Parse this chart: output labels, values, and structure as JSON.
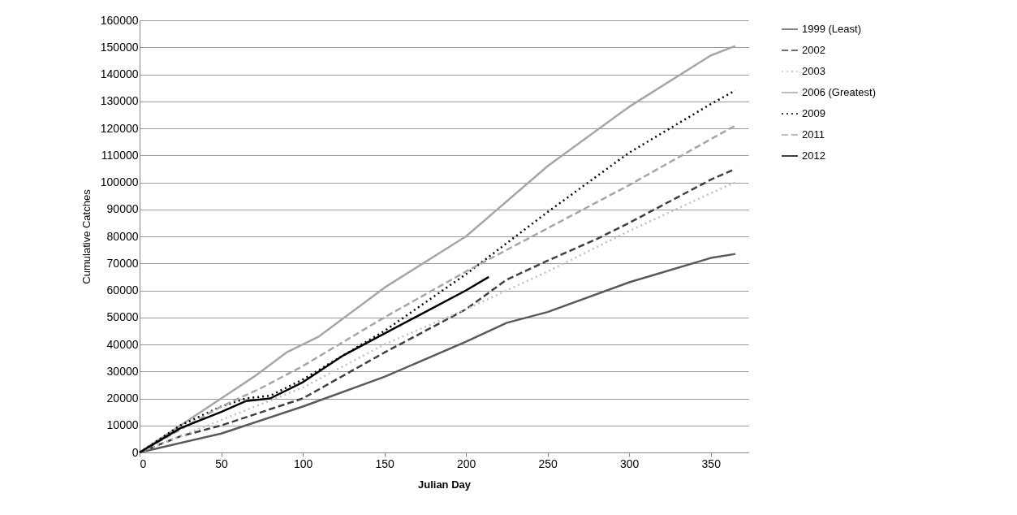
{
  "chart_data": {
    "type": "line",
    "xlabel": "Julian Day",
    "ylabel": "Cumulative Catches",
    "xlim": [
      0,
      373
    ],
    "xticks": [
      0,
      50,
      100,
      150,
      200,
      250,
      300,
      350
    ],
    "ylim": [
      0,
      160000
    ],
    "yticks": [
      0,
      10000,
      20000,
      30000,
      40000,
      50000,
      60000,
      70000,
      80000,
      90000,
      100000,
      110000,
      120000,
      130000,
      140000,
      150000,
      160000
    ],
    "grid": "y",
    "legend": "right",
    "marker": "none",
    "series": [
      {
        "name": "1999 (Least)",
        "color": "#595959",
        "line_style": "solid",
        "x": [
          0,
          50,
          100,
          150,
          200,
          225,
          250,
          300,
          350,
          365
        ],
        "values": [
          0,
          7000,
          17000,
          28000,
          41000,
          48000,
          52000,
          63000,
          72000,
          73500
        ]
      },
      {
        "name": "2002",
        "color": "#404040",
        "line_style": "dashed",
        "x": [
          0,
          25,
          50,
          100,
          150,
          200,
          225,
          250,
          280,
          300,
          350,
          365
        ],
        "values": [
          0,
          6000,
          10000,
          20000,
          37000,
          53000,
          64000,
          71000,
          79000,
          85000,
          101000,
          105000
        ]
      },
      {
        "name": "2003",
        "color": "#c0c0c0",
        "line_style": "dotted",
        "x": [
          0,
          50,
          100,
          150,
          200,
          250,
          300,
          350,
          365
        ],
        "values": [
          0,
          12000,
          24000,
          40000,
          53000,
          67000,
          82000,
          96000,
          100000
        ]
      },
      {
        "name": "2006 (Greatest)",
        "color": "#a6a6a6",
        "line_style": "solid",
        "x": [
          0,
          25,
          50,
          70,
          90,
          110,
          150,
          200,
          250,
          300,
          350,
          365
        ],
        "values": [
          0,
          10000,
          20000,
          28000,
          37000,
          43000,
          61000,
          80000,
          106000,
          128000,
          147000,
          150500
        ]
      },
      {
        "name": "2009",
        "color": "#000000",
        "line_style": "dotted",
        "x": [
          0,
          25,
          50,
          65,
          80,
          100,
          150,
          200,
          250,
          300,
          350,
          365
        ],
        "values": [
          0,
          10000,
          17000,
          20000,
          21000,
          27000,
          45000,
          66000,
          89000,
          111000,
          129000,
          134000
        ]
      },
      {
        "name": "2011",
        "color": "#a6a6a6",
        "line_style": "dashed",
        "x": [
          0,
          50,
          75,
          100,
          150,
          200,
          250,
          300,
          350,
          365
        ],
        "values": [
          0,
          17000,
          24000,
          32000,
          50000,
          67000,
          83000,
          99000,
          116000,
          121000
        ]
      },
      {
        "name": "2012",
        "color": "#000000",
        "line_style": "solid",
        "x": [
          0,
          25,
          50,
          65,
          80,
          100,
          125,
          150,
          175,
          200,
          214
        ],
        "values": [
          0,
          9000,
          15000,
          19000,
          20000,
          26000,
          36000,
          44000,
          52000,
          60000,
          65000
        ]
      }
    ]
  }
}
